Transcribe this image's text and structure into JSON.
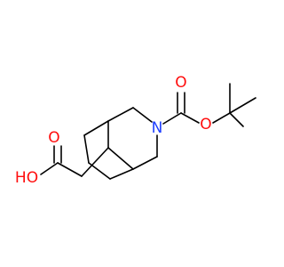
{
  "atoms": {
    "carbonyl_o": "O",
    "ester_o": "O",
    "n": "N",
    "acid_o": "O",
    "acid_oh": "HO"
  }
}
